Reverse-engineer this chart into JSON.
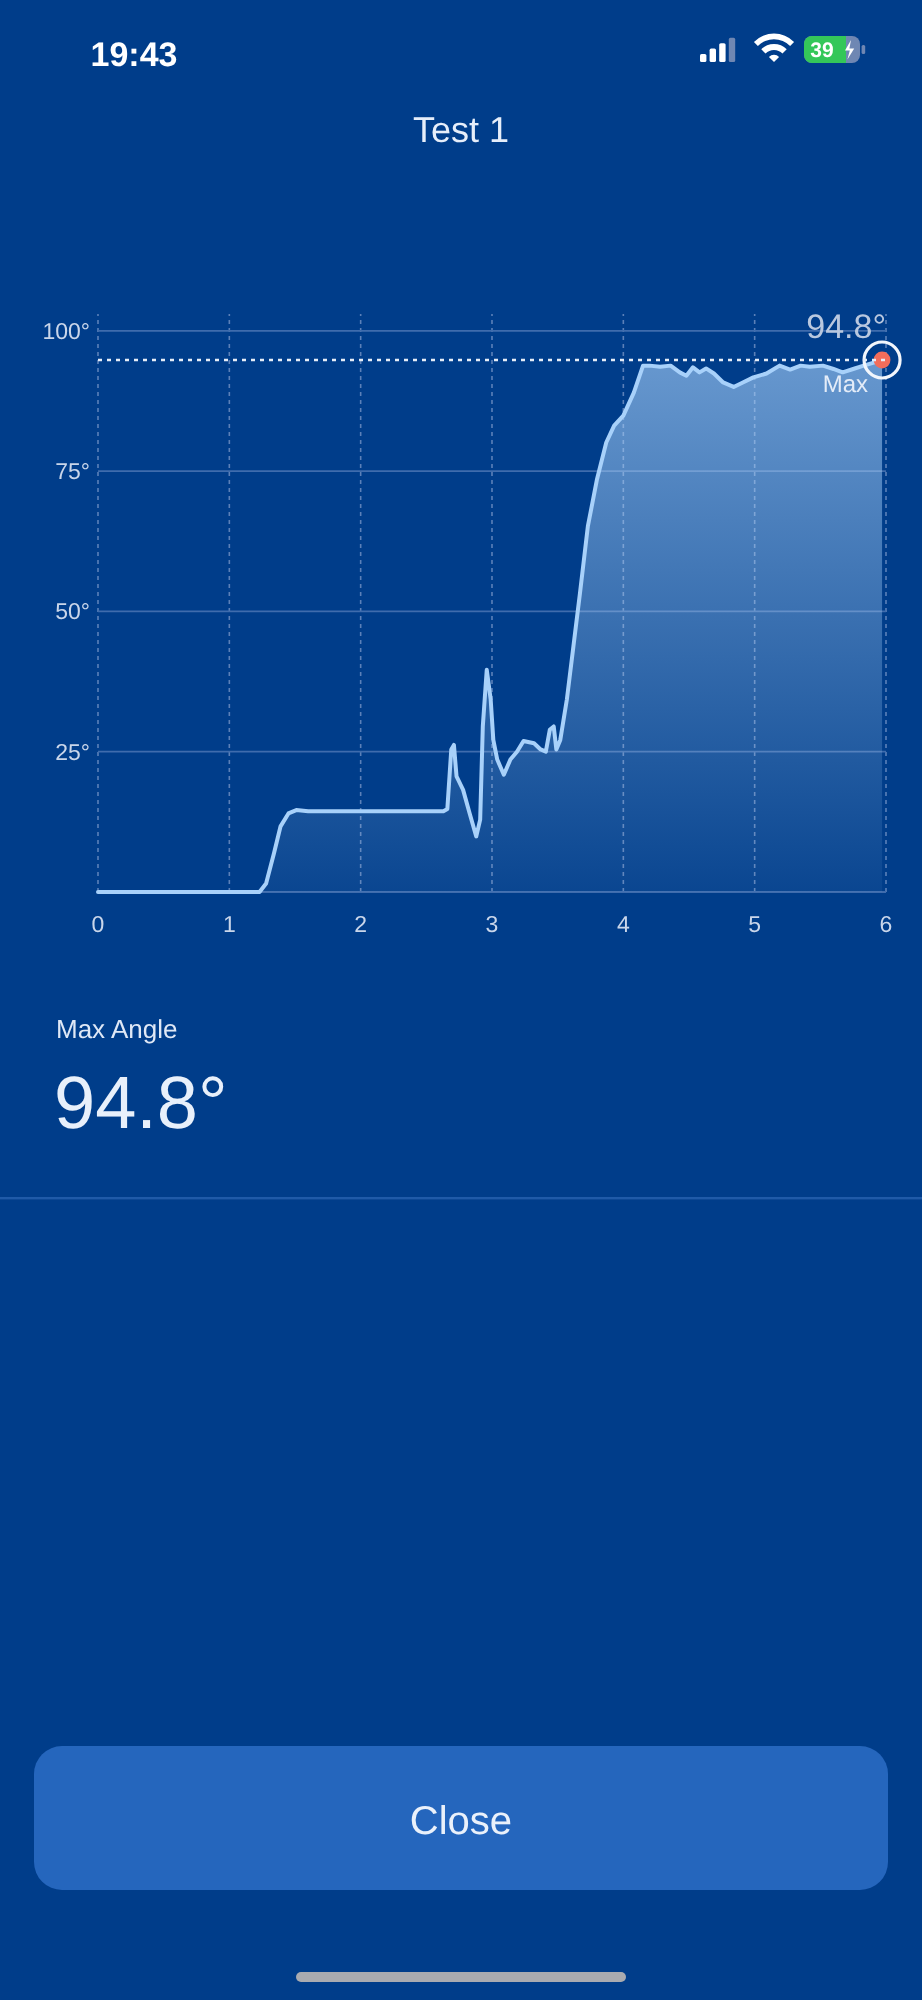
{
  "chart_data": {
    "type": "area",
    "title": "Test 1",
    "x": [
      0,
      1.23,
      1.28,
      1.34,
      1.39,
      1.45,
      1.51,
      1.6,
      2.63,
      2.66,
      2.69,
      2.71,
      2.73,
      2.78,
      2.83,
      2.88,
      2.91,
      2.93,
      2.96,
      2.99,
      3.01,
      3.04,
      3.09,
      3.14,
      3.19,
      3.24,
      3.32,
      3.37,
      3.41,
      3.44,
      3.47,
      3.49,
      3.52,
      3.57,
      3.62,
      3.67,
      3.73,
      3.8,
      3.87,
      3.93,
      4,
      4.08,
      4.15,
      4.2,
      4.28,
      4.36,
      4.43,
      4.48,
      4.53,
      4.58,
      4.63,
      4.69,
      4.76,
      4.84,
      4.91,
      4.99,
      5.09,
      5.19,
      5.27,
      5.35,
      5.42,
      5.52,
      5.6,
      5.67,
      5.75,
      5.83,
      5.9,
      5.97
    ],
    "series": [
      {
        "color": "#a8d1fa",
        "values": [
          0,
          0,
          1.5,
          6.9,
          11.7,
          14,
          14.6,
          14.4,
          14.4,
          14.8,
          25.4,
          26.2,
          20.6,
          18.2,
          14,
          9.9,
          12.9,
          29.5,
          39.6,
          34.3,
          27.1,
          23.6,
          20.9,
          23.6,
          25,
          26.9,
          26.5,
          25.4,
          25,
          28.9,
          29.5,
          25.4,
          27.1,
          34.3,
          43.8,
          53.3,
          65.2,
          73.6,
          80.1,
          83.1,
          84.9,
          89,
          93.8,
          93.8,
          93.6,
          93.8,
          92.6,
          92,
          93.5,
          92.6,
          93.3,
          92.4,
          90.8,
          90,
          90.8,
          91.7,
          92.4,
          93.8,
          93.1,
          93.8,
          93.6,
          93.8,
          93.2,
          92.6,
          93.2,
          93.8,
          94.3,
          94.8
        ]
      },
      {
        "type": "scatter",
        "x": [
          5.97
        ],
        "values": [
          94.8
        ],
        "color": "#f26d5b",
        "marker": "circle"
      }
    ],
    "xlim": [
      0,
      6
    ],
    "ylim": [
      0,
      103
    ],
    "xticks": [
      0,
      1,
      2,
      3,
      4,
      5,
      6
    ],
    "yticks": [
      {
        "value": 0,
        "label": null
      },
      {
        "value": 25,
        "label": "25°"
      },
      {
        "value": 50,
        "label": "50°"
      },
      {
        "value": 75,
        "label": "75°"
      },
      {
        "value": 100,
        "label": "100°"
      }
    ],
    "grid": true,
    "ref_lines": [
      {
        "axis": "y",
        "value": 94.8,
        "label": "Max",
        "color": "#e6edf8",
        "line_style": "dotted"
      }
    ],
    "annotations": [
      {
        "text": "94.8°",
        "x": 5.97,
        "y": 94.8
      },
      "Max Angle",
      "94.8°",
      "19:43",
      "39",
      "Close"
    ]
  }
}
